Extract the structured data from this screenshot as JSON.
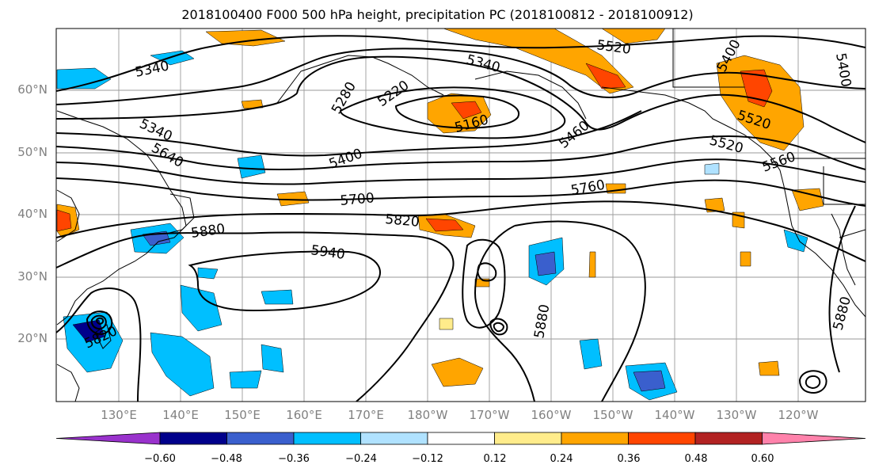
{
  "title": "2018100400 F000 500 hPa height, precipitation PC (2018100812 - 2018100912)",
  "lat_labels": [
    "60°N",
    "50°N",
    "40°N",
    "30°N",
    "20°N"
  ],
  "lon_labels": [
    "130°E",
    "140°E",
    "150°E",
    "160°E",
    "170°E",
    "180°W",
    "170°W",
    "160°W",
    "150°W",
    "140°W",
    "130°W",
    "120°W"
  ],
  "contour_labels": [
    "5340",
    "5340",
    "5520",
    "5400",
    "5400",
    "5340",
    "5220",
    "5280",
    "5160",
    "5460",
    "5520",
    "5520",
    "5640",
    "5400",
    "5560",
    "5700",
    "5760",
    "5820",
    "5880",
    "5940",
    "5880",
    "5880",
    "5820"
  ],
  "colorbar": {
    "ticks": [
      "−0.60",
      "−0.48",
      "−0.36",
      "−0.24",
      "−0.12",
      "0.12",
      "0.24",
      "0.36",
      "0.48",
      "0.60"
    ],
    "colors": [
      "#9932cc",
      "#00008b",
      "#3a5fcd",
      "#00bfff",
      "#b0e2ff",
      "#ffffff",
      "#ffec8b",
      "#ffa500",
      "#ff4500",
      "#b22222",
      "#ff82ab"
    ]
  }
}
